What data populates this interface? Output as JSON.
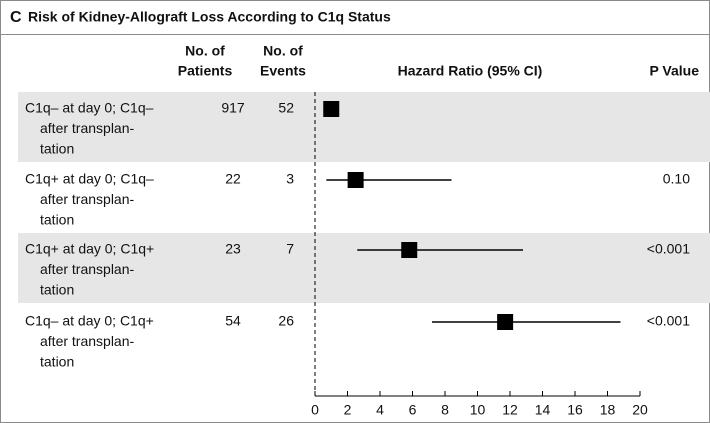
{
  "chart_data": {
    "type": "forest",
    "panel": "C",
    "title": "Risk of Kidney-Allograft Loss According to C1q Status",
    "columns": {
      "patients": [
        "No. of",
        "Patients"
      ],
      "events": [
        "No. of",
        "Events"
      ],
      "hr": "Hazard Ratio (95% CI)",
      "p": "P Value"
    },
    "rows": [
      {
        "label": [
          "C1q– at day 0; C1q–",
          "after transplan-",
          "tation"
        ],
        "patients": 917,
        "events": 52,
        "hr": 1,
        "ci": null,
        "p": null
      },
      {
        "label": [
          "C1q+ at day 0; C1q–",
          "after transplan-",
          "tation"
        ],
        "patients": 22,
        "events": 3,
        "hr": 2.5,
        "ci": [
          0.7,
          8.4
        ],
        "p": "0.10"
      },
      {
        "label": [
          "C1q+ at day 0; C1q+",
          "after transplan-",
          "tation"
        ],
        "patients": 23,
        "events": 7,
        "hr": 5.8,
        "ci": [
          2.6,
          12.8
        ],
        "p": "<0.001"
      },
      {
        "label": [
          "C1q– at day 0; C1q+",
          "after transplan-",
          "tation"
        ],
        "patients": 54,
        "events": 26,
        "hr": 11.7,
        "ci": [
          7.2,
          18.8
        ],
        "p": "<0.001"
      }
    ],
    "xlim": [
      0,
      20
    ],
    "xticks": [
      0,
      2,
      4,
      6,
      8,
      10,
      12,
      14,
      16,
      18,
      20
    ],
    "color": "#000000",
    "band_color": "#e6e6e7"
  }
}
